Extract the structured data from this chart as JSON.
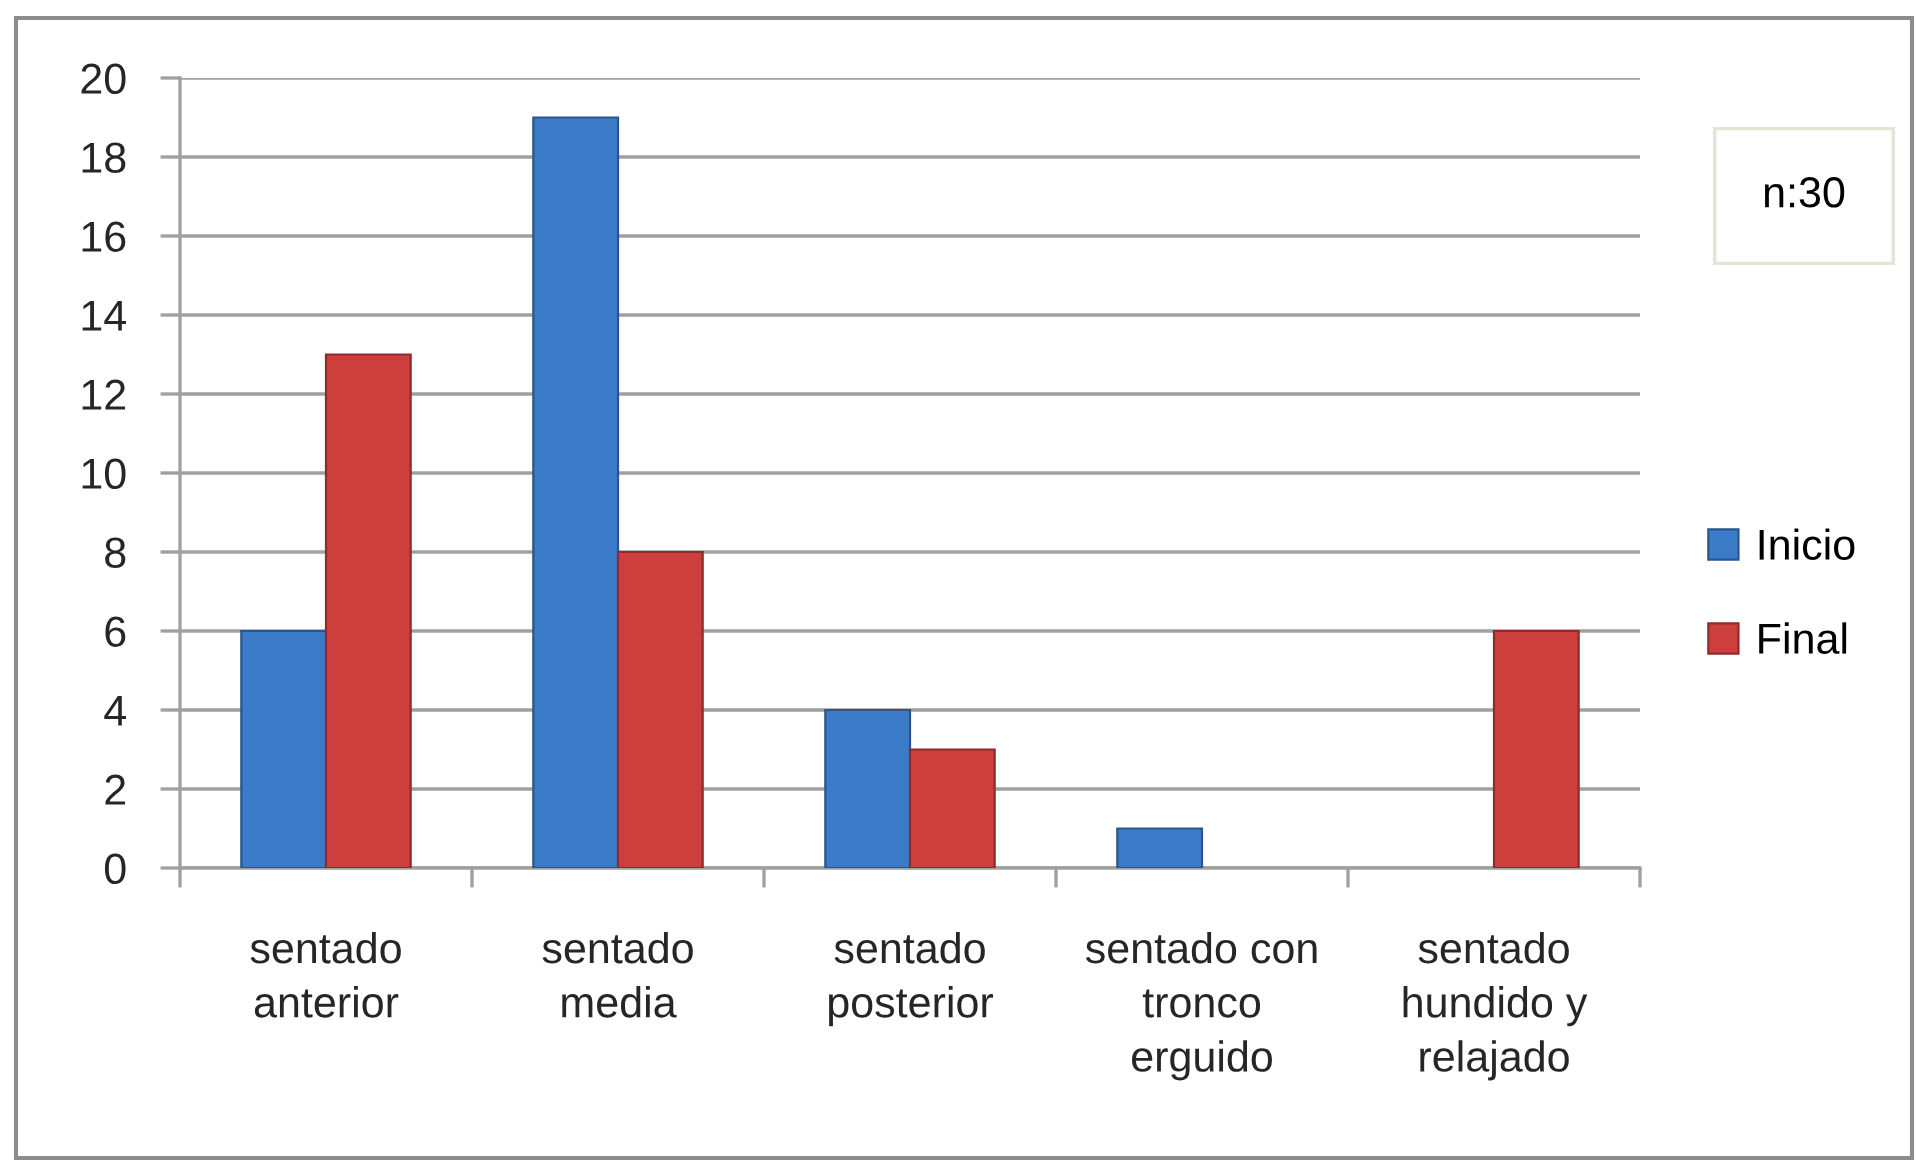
{
  "chart_data": {
    "type": "bar",
    "categories": [
      "sentado\nanterior",
      "sentado\nmedia",
      "sentado\nposterior",
      "sentado con\ntronco\nerguido",
      "sentado\nhundido y\nrelajado"
    ],
    "series": [
      {
        "name": "Inicio",
        "color": "#3c7bc8",
        "values": [
          6,
          19,
          4,
          1,
          null
        ]
      },
      {
        "name": "Final",
        "color": "#cc3f3d",
        "values": [
          13,
          8,
          3,
          null,
          6
        ]
      }
    ],
    "ylim": [
      0,
      20
    ],
    "yticks": [
      0,
      2,
      4,
      6,
      8,
      10,
      12,
      14,
      16,
      18,
      20
    ],
    "grid": "y",
    "legend": "right",
    "annotations": [
      "n:30"
    ]
  }
}
